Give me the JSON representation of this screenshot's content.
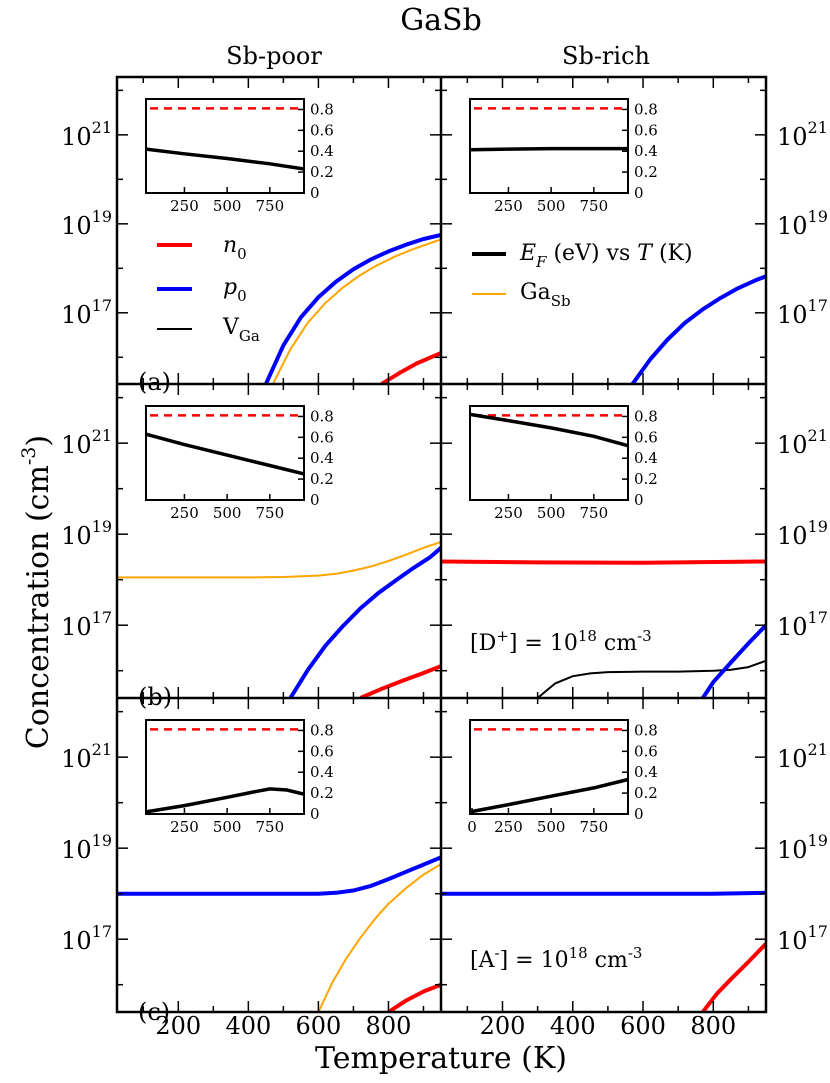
{
  "figure": {
    "title": "GaSb",
    "ylabel_main": "Concentration (cm",
    "ylabel_exp": "-3",
    "ylabel_close": ")",
    "xlabel": "Temperature (K)",
    "col_titles": [
      "Sb-poor",
      "Sb-rich"
    ],
    "row_labels": [
      "(a)",
      "(b)",
      "(c)"
    ],
    "colors": {
      "n0": "#ff0000",
      "p0": "#0000ff",
      "VGa": "#000000",
      "GaSb": "#ffa500",
      "Ef": "#000000",
      "gap": "#ff0000"
    }
  },
  "legend": {
    "n0": {
      "base": "n",
      "sub": "0"
    },
    "p0": {
      "base": "p",
      "sub": "0"
    },
    "VGa": {
      "base": "V",
      "sub": "Ga"
    },
    "Ef": {
      "base": "E",
      "sub": "F",
      "rest": " (eV) vs ",
      "T": "T",
      "unit": " (K)"
    },
    "GaSb": {
      "base": "Ga",
      "sub": "Sb"
    }
  },
  "annotations": {
    "b_right": {
      "pre": "[D",
      "sup1": "+",
      "mid": "] = 10",
      "sup2": "18",
      "post": " cm",
      "sup3": "-3"
    },
    "c_right": {
      "pre": "[A",
      "sup1": "-",
      "mid": "] = 10",
      "sup2": "18",
      "post": " cm",
      "sup3": "-3"
    }
  },
  "chart_data": {
    "type": "line",
    "x_axis": {
      "label": "Temperature (K)",
      "range": [
        25,
        950
      ],
      "ticks": [
        200,
        400,
        600,
        800
      ]
    },
    "y_axis": {
      "label": "Concentration (cm^-3)",
      "scale": "log10",
      "range": [
        15.4,
        22.3
      ],
      "tick_exponents": [
        21,
        19,
        17
      ],
      "tick_base": "10"
    },
    "inset": {
      "x_range": [
        25,
        950
      ],
      "y_range": [
        0,
        0.9
      ],
      "x_ticks": [
        250,
        500,
        750
      ],
      "x_ticks_with_zero": [
        0,
        250,
        500,
        750
      ],
      "y_ticks": [
        "0",
        "0.2",
        "0.4",
        "0.6",
        "0.8"
      ],
      "y_tick_values": [
        0,
        0.2,
        0.4,
        0.6,
        0.8
      ],
      "band_gap_eV": 0.81
    },
    "panels": [
      {
        "id": "a-poor",
        "series": [
          {
            "name": "p0",
            "x": [
              450,
              500,
              550,
              600,
              650,
              700,
              750,
              800,
              850,
              900,
              950
            ],
            "y": [
              15.4,
              16.27,
              16.9,
              17.35,
              17.7,
              17.98,
              18.2,
              18.38,
              18.53,
              18.66,
              18.75
            ]
          },
          {
            "name": "GaSb",
            "x": [
              470,
              520,
              570,
              620,
              670,
              720,
              770,
              820,
              870,
              920,
              950
            ],
            "y": [
              15.4,
              16.18,
              16.78,
              17.22,
              17.57,
              17.85,
              18.08,
              18.27,
              18.43,
              18.57,
              18.65
            ]
          },
          {
            "name": "n0",
            "x": [
              780,
              830,
              880,
              950
            ],
            "y": [
              15.4,
              15.64,
              15.86,
              16.1
            ]
          }
        ],
        "inset_Ef": {
          "x": [
            25,
            250,
            500,
            750,
            950
          ],
          "y": [
            0.42,
            0.375,
            0.33,
            0.28,
            0.23
          ]
        }
      },
      {
        "id": "a-rich",
        "series": [
          {
            "name": "p0",
            "x": [
              570,
              620,
              670,
              720,
              770,
              820,
              870,
              920,
              950
            ],
            "y": [
              15.4,
              15.95,
              16.4,
              16.78,
              17.08,
              17.33,
              17.55,
              17.73,
              17.82
            ]
          }
        ],
        "inset_Ef": {
          "x": [
            25,
            250,
            500,
            750,
            950
          ],
          "y": [
            0.415,
            0.42,
            0.425,
            0.425,
            0.425
          ]
        }
      },
      {
        "id": "b-poor",
        "series": [
          {
            "name": "GaSb",
            "x": [
              25,
              200,
              400,
              500,
              600,
              650,
              700,
              750,
              800,
              850,
              900,
              950
            ],
            "y": [
              18.05,
              18.05,
              18.05,
              18.06,
              18.09,
              18.13,
              18.2,
              18.29,
              18.41,
              18.55,
              18.7,
              18.83
            ]
          },
          {
            "name": "p0",
            "x": [
              520,
              570,
              620,
              670,
              720,
              770,
              820,
              870,
              920,
              950
            ],
            "y": [
              15.4,
              16.02,
              16.55,
              16.98,
              17.37,
              17.7,
              17.98,
              18.25,
              18.5,
              18.7
            ]
          },
          {
            "name": "n0",
            "x": [
              720,
              780,
              840,
              900,
              950
            ],
            "y": [
              15.4,
              15.6,
              15.78,
              15.95,
              16.1
            ]
          }
        ],
        "inset_Ef": {
          "x": [
            25,
            250,
            500,
            750,
            950
          ],
          "y": [
            0.63,
            0.53,
            0.43,
            0.33,
            0.25
          ]
        }
      },
      {
        "id": "b-rich",
        "series": [
          {
            "name": "n0",
            "x": [
              25,
              300,
              600,
              950
            ],
            "y": [
              18.4,
              18.38,
              18.37,
              18.4
            ]
          },
          {
            "name": "VGa",
            "x": [
              300,
              350,
              400,
              450,
              500,
              600,
              700,
              800,
              850,
              900,
              950
            ],
            "y": [
              15.4,
              15.72,
              15.88,
              15.94,
              15.97,
              15.98,
              15.98,
              16.0,
              16.02,
              16.08,
              16.22
            ]
          },
          {
            "name": "p0",
            "x": [
              770,
              800,
              850,
              900,
              950
            ],
            "y": [
              15.4,
              15.75,
              16.18,
              16.6,
              17.0
            ]
          }
        ],
        "inset_Ef": {
          "x": [
            25,
            250,
            500,
            750,
            950
          ],
          "y": [
            0.82,
            0.76,
            0.69,
            0.61,
            0.52
          ]
        }
      },
      {
        "id": "c-poor",
        "series": [
          {
            "name": "p0",
            "x": [
              25,
              400,
              600,
              650,
              700,
              750,
              800,
              850,
              900,
              950
            ],
            "y": [
              18.0,
              18.0,
              18.0,
              18.02,
              18.07,
              18.17,
              18.32,
              18.48,
              18.64,
              18.8
            ]
          },
          {
            "name": "GaSb",
            "x": [
              600,
              640,
              680,
              720,
              760,
              800,
              850,
              900,
              950
            ],
            "y": [
              15.4,
              16.05,
              16.58,
              17.03,
              17.43,
              17.78,
              18.12,
              18.42,
              18.65
            ]
          },
          {
            "name": "n0",
            "x": [
              800,
              850,
              900,
              950
            ],
            "y": [
              15.4,
              15.65,
              15.85,
              16.0
            ]
          }
        ],
        "inset_Ef": {
          "x": [
            25,
            250,
            500,
            650,
            750,
            850,
            950
          ],
          "y": [
            0.02,
            0.08,
            0.16,
            0.21,
            0.24,
            0.23,
            0.19
          ]
        }
      },
      {
        "id": "c-rich",
        "series": [
          {
            "name": "p0",
            "x": [
              25,
              400,
              800,
              950
            ],
            "y": [
              18.0,
              18.0,
              18.0,
              18.02
            ]
          },
          {
            "name": "n0",
            "x": [
              770,
              810,
              850,
              900,
              950
            ],
            "y": [
              15.4,
              15.8,
              16.12,
              16.5,
              16.9
            ]
          }
        ],
        "inset_Ef": {
          "x": [
            25,
            250,
            500,
            750,
            950
          ],
          "y": [
            0.02,
            0.09,
            0.17,
            0.25,
            0.33
          ]
        }
      }
    ]
  }
}
